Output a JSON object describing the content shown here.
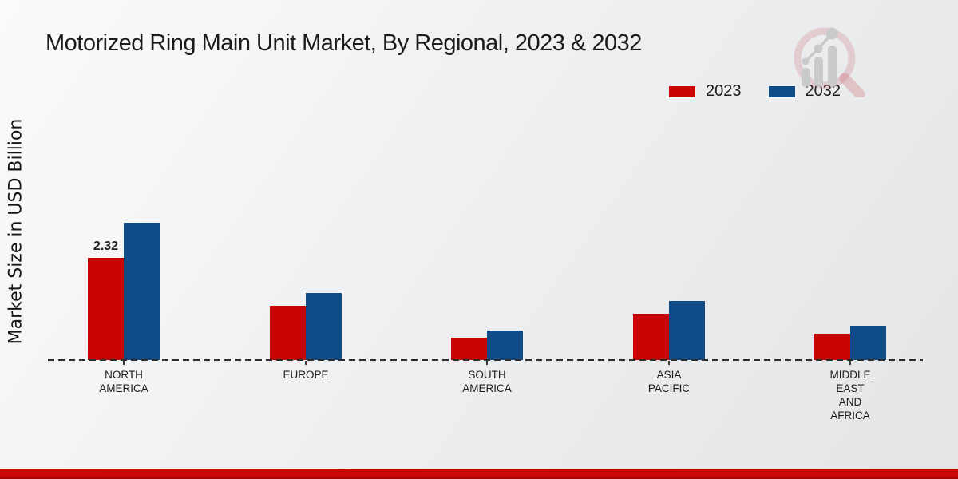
{
  "title": "Motorized Ring Main Unit Market, By Regional, 2023 & 2032",
  "ylabel": "Market Size in USD Billion",
  "legend": {
    "items": [
      {
        "label": "2023",
        "color": "#c90404"
      },
      {
        "label": "2032",
        "color": "#0e4b87"
      }
    ]
  },
  "watermark_icon": "magnifier-bar-chart-logo",
  "footer": {
    "band_color": "#cb0606"
  },
  "chart_data": {
    "type": "bar",
    "title": "Motorized Ring Main Unit Market, By Regional, 2023 & 2032",
    "xlabel": "",
    "ylabel": "Market Size in USD Billion",
    "categories": [
      "NORTH AMERICA",
      "EUROPE",
      "SOUTH AMERICA",
      "ASIA PACIFIC",
      "MIDDLE EAST AND AFRICA"
    ],
    "category_label_lines": [
      [
        "NORTH",
        "AMERICA"
      ],
      [
        "EUROPE"
      ],
      [
        "SOUTH",
        "AMERICA"
      ],
      [
        "ASIA",
        "PACIFIC"
      ],
      [
        "MIDDLE",
        "EAST",
        "AND",
        "AFRICA"
      ]
    ],
    "series": [
      {
        "name": "2023",
        "color": "#c90404",
        "values": [
          2.32,
          1.23,
          0.51,
          1.05,
          0.6
        ]
      },
      {
        "name": "2032",
        "color": "#0e4b87",
        "values": [
          3.11,
          1.52,
          0.67,
          1.34,
          0.78
        ]
      }
    ],
    "value_labels": [
      {
        "series": "2023",
        "category_index": 0,
        "text": "2.32"
      }
    ],
    "ylim": [
      0,
      3.6
    ],
    "grid": false,
    "legend_position": "top-right",
    "baseline_style": "dashed",
    "units": "USD Billion"
  }
}
